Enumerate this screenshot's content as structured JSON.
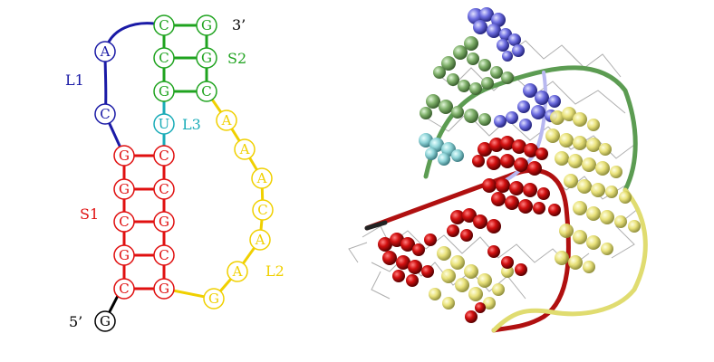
{
  "colors": {
    "L1": "#1a1aa6",
    "S2": "#1fa31f",
    "L3": "#1aacb8",
    "L2": "#f0d000",
    "S1": "#e01010",
    "end": "#000000"
  },
  "labels": {
    "three_prime": "3’",
    "five_prime": "5’",
    "L1": "L1",
    "S2": "S2",
    "L3": "L3",
    "S1": "S1",
    "L2": "L2"
  },
  "nucleotides": {
    "five_prime_G": "G",
    "S1_left": [
      "C",
      "G",
      "C",
      "G",
      "G"
    ],
    "S1_right": [
      "G",
      "C",
      "G",
      "C",
      "C"
    ],
    "L1": [
      "C",
      "A"
    ],
    "S2_left": [
      "C",
      "C",
      "G"
    ],
    "S2_right": [
      "G",
      "G",
      "C"
    ],
    "L3": "U",
    "L2": [
      "G",
      "A",
      "A",
      "C",
      "A",
      "A",
      "A"
    ]
  },
  "structure_panel": {
    "description_colors": [
      "red",
      "yellow",
      "green",
      "blue",
      "cyan"
    ]
  }
}
